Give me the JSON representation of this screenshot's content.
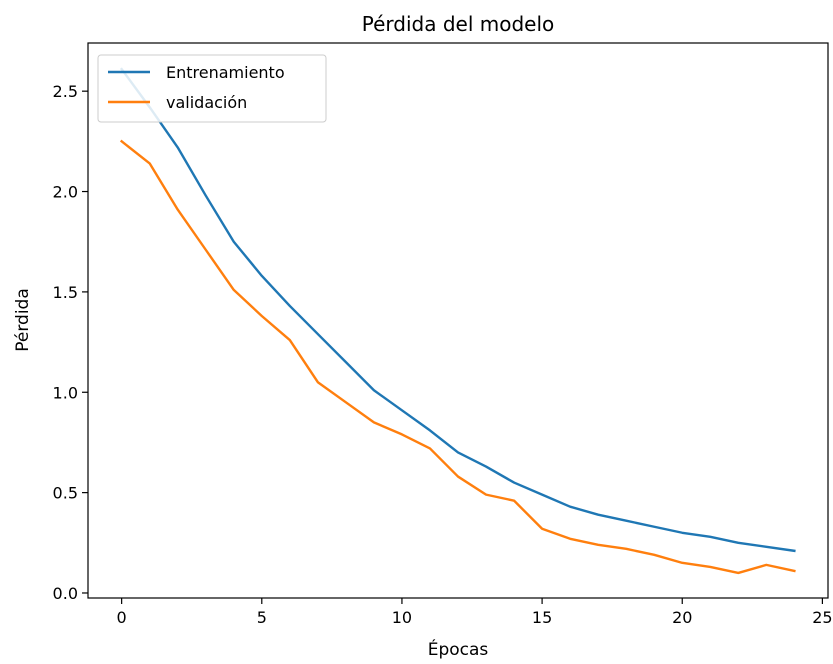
{
  "chart_data": {
    "type": "line",
    "title": "Pérdida del modelo",
    "xlabel": "Épocas",
    "ylabel": "Pérdida",
    "xlim": [
      -1.2,
      25.2
    ],
    "ylim": [
      -0.025,
      2.74
    ],
    "xticks": [
      0,
      5,
      10,
      15,
      20,
      25
    ],
    "xtick_labels": [
      "0",
      "5",
      "10",
      "15",
      "20",
      "25"
    ],
    "yticks": [
      0.0,
      0.5,
      1.0,
      1.5,
      2.0,
      2.5
    ],
    "ytick_labels": [
      "0.0",
      "0.5",
      "1.0",
      "1.5",
      "2.0",
      "2.5"
    ],
    "grid": false,
    "legend_position": "upper left",
    "x": [
      0,
      1,
      2,
      3,
      4,
      5,
      6,
      7,
      8,
      9,
      10,
      11,
      12,
      13,
      14,
      15,
      16,
      17,
      18,
      19,
      20,
      21,
      22,
      23,
      24
    ],
    "series": [
      {
        "name": "Entrenamiento",
        "color": "#1f77b4",
        "values": [
          2.61,
          2.42,
          2.22,
          1.98,
          1.75,
          1.58,
          1.43,
          1.29,
          1.15,
          1.01,
          0.91,
          0.81,
          0.7,
          0.63,
          0.55,
          0.49,
          0.43,
          0.39,
          0.36,
          0.33,
          0.3,
          0.28,
          0.25,
          0.23,
          0.21
        ]
      },
      {
        "name": "validación",
        "color": "#ff7f0e",
        "values": [
          2.25,
          2.14,
          1.91,
          1.71,
          1.51,
          1.38,
          1.26,
          1.05,
          0.95,
          0.85,
          0.79,
          0.72,
          0.58,
          0.49,
          0.46,
          0.32,
          0.27,
          0.24,
          0.22,
          0.19,
          0.15,
          0.13,
          0.1,
          0.14,
          0.11
        ]
      }
    ]
  }
}
